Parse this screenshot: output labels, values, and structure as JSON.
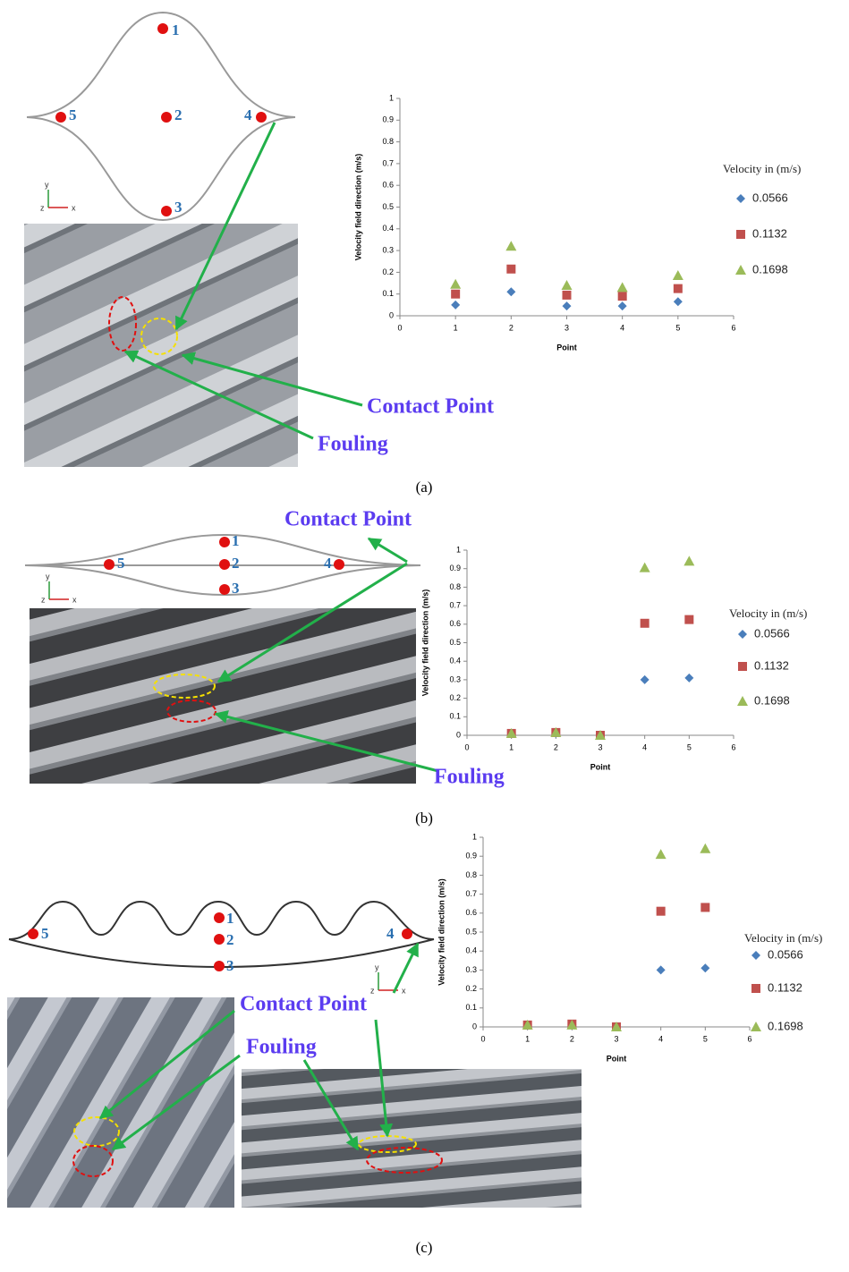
{
  "chart_data": [
    {
      "type": "scatter",
      "x_label": "Point",
      "y_label": "Velocity field direction (m/s)",
      "legend_title": "Velocity in (m/s)",
      "x": [
        1,
        2,
        3,
        4,
        5
      ],
      "xlim": [
        0,
        6
      ],
      "xticks": [
        0,
        1,
        2,
        3,
        4,
        5,
        6
      ],
      "ylim": [
        0,
        1
      ],
      "yticks": [
        0,
        0.1,
        0.2,
        0.3,
        0.4,
        0.5,
        0.6,
        0.7,
        0.8,
        0.9,
        1
      ],
      "grid": false,
      "series": [
        {
          "name": "0.0566",
          "color": "#4a7ebb",
          "marker": "diamond",
          "values": [
            0.05,
            0.11,
            0.045,
            0.045,
            0.065
          ]
        },
        {
          "name": "0.1132",
          "color": "#c0504d",
          "marker": "square",
          "values": [
            0.1,
            0.215,
            0.095,
            0.09,
            0.125
          ]
        },
        {
          "name": "0.1698",
          "color": "#9bbb59",
          "marker": "triangle",
          "values": [
            0.145,
            0.32,
            0.14,
            0.13,
            0.185
          ]
        }
      ]
    },
    {
      "type": "scatter",
      "x_label": "Point",
      "y_label": "Velocity field direction (m/s)",
      "legend_title": "Velocity in (m/s)",
      "x": [
        1,
        2,
        3,
        4,
        5
      ],
      "xlim": [
        0,
        6
      ],
      "xticks": [
        0,
        1,
        2,
        3,
        4,
        5,
        6
      ],
      "ylim": [
        0,
        1
      ],
      "yticks": [
        0,
        0.1,
        0.2,
        0.3,
        0.4,
        0.5,
        0.6,
        0.7,
        0.8,
        0.9,
        1
      ],
      "grid": false,
      "series": [
        {
          "name": "0.0566",
          "color": "#4a7ebb",
          "marker": "diamond",
          "values": [
            0.01,
            0.01,
            0,
            0.3,
            0.31
          ]
        },
        {
          "name": "0.1132",
          "color": "#c0504d",
          "marker": "square",
          "values": [
            0.01,
            0.015,
            0,
            0.605,
            0.625
          ]
        },
        {
          "name": "0.1698",
          "color": "#9bbb59",
          "marker": "triangle",
          "values": [
            0.01,
            0.015,
            0,
            0.905,
            0.94
          ]
        }
      ]
    },
    {
      "type": "scatter",
      "x_label": "Point",
      "y_label": "Velocity field direction (m/s)",
      "legend_title": "Velocity in (m/s)",
      "x": [
        1,
        2,
        3,
        4,
        5
      ],
      "xlim": [
        0,
        6
      ],
      "xticks": [
        0,
        1,
        2,
        3,
        4,
        5,
        6
      ],
      "ylim": [
        0,
        1
      ],
      "yticks": [
        0,
        0.1,
        0.2,
        0.3,
        0.4,
        0.5,
        0.6,
        0.7,
        0.8,
        0.9,
        1
      ],
      "grid": false,
      "series": [
        {
          "name": "0.0566",
          "color": "#4a7ebb",
          "marker": "diamond",
          "values": [
            0.01,
            0.01,
            0,
            0.3,
            0.31
          ]
        },
        {
          "name": "0.1132",
          "color": "#c0504d",
          "marker": "square",
          "values": [
            0.01,
            0.015,
            0,
            0.61,
            0.63
          ]
        },
        {
          "name": "0.1698",
          "color": "#9bbb59",
          "marker": "triangle",
          "values": [
            0.01,
            0.01,
            0,
            0.91,
            0.94
          ]
        }
      ]
    }
  ],
  "panels": [
    {
      "label": "(a)",
      "contact": "Contact Point",
      "fouling": "Fouling",
      "points": [
        "1",
        "2",
        "3",
        "4",
        "5"
      ],
      "axes": [
        "y",
        "z",
        "x"
      ]
    },
    {
      "label": "(b)",
      "contact": "Contact Point",
      "fouling": "Fouling",
      "points": [
        "1",
        "2",
        "3",
        "4",
        "5"
      ],
      "axes": [
        "y",
        "z",
        "x"
      ]
    },
    {
      "label": "(c)",
      "contact": "Contact Point",
      "fouling": "Fouling",
      "points": [
        "1",
        "2",
        "3",
        "4",
        "5"
      ],
      "axes": [
        "y",
        "z",
        "x"
      ]
    }
  ]
}
